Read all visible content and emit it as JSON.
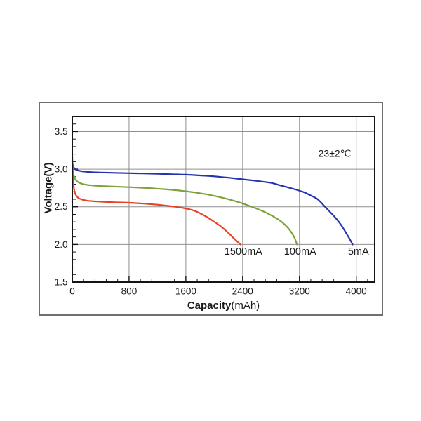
{
  "page": {
    "background": "#ffffff"
  },
  "figure": {
    "border_color": "#6f6f6f"
  },
  "chart_data": {
    "type": "line",
    "title": "",
    "xlabel": "Capacity",
    "xlabel_unit": "(mAh)",
    "ylabel": "Voltage(V)",
    "annotation": "23±2℃",
    "x_ticks": [
      0,
      800,
      1600,
      2400,
      3200,
      4000
    ],
    "y_ticks": [
      1.5,
      2.0,
      2.5,
      3.0,
      3.5
    ],
    "xlim": [
      0,
      4260
    ],
    "ylim": [
      1.5,
      3.7
    ],
    "x_minor_step": 160,
    "y_minor_step": 0.1,
    "grid": true,
    "legend_position": "labels-at-curve-ends",
    "colors": {
      "grid": "#8f8f8f",
      "axis": "#141414",
      "text": "#1a1a1a"
    },
    "series": [
      {
        "name": "5mA",
        "color": "#2433ad",
        "label_x": 4030,
        "label_y": 1.9,
        "points": [
          [
            0,
            3.1
          ],
          [
            10,
            3.05
          ],
          [
            30,
            3.01
          ],
          [
            60,
            2.99
          ],
          [
            120,
            2.975
          ],
          [
            250,
            2.962
          ],
          [
            400,
            2.956
          ],
          [
            600,
            2.951
          ],
          [
            800,
            2.947
          ],
          [
            1000,
            2.943
          ],
          [
            1200,
            2.939
          ],
          [
            1400,
            2.933
          ],
          [
            1600,
            2.927
          ],
          [
            1800,
            2.917
          ],
          [
            2000,
            2.905
          ],
          [
            2200,
            2.887
          ],
          [
            2400,
            2.866
          ],
          [
            2600,
            2.844
          ],
          [
            2800,
            2.818
          ],
          [
            2930,
            2.785
          ],
          [
            3060,
            2.752
          ],
          [
            3160,
            2.726
          ],
          [
            3260,
            2.695
          ],
          [
            3360,
            2.65
          ],
          [
            3460,
            2.597
          ],
          [
            3560,
            2.5
          ],
          [
            3650,
            2.413
          ],
          [
            3740,
            2.318
          ],
          [
            3820,
            2.21
          ],
          [
            3890,
            2.1
          ],
          [
            3950,
            2.0
          ]
        ]
      },
      {
        "name": "100mA",
        "color": "#7da23b",
        "label_x": 3210,
        "label_y": 1.9,
        "points": [
          [
            0,
            3.06
          ],
          [
            8,
            2.97
          ],
          [
            20,
            2.92
          ],
          [
            40,
            2.87
          ],
          [
            80,
            2.83
          ],
          [
            140,
            2.805
          ],
          [
            220,
            2.79
          ],
          [
            350,
            2.779
          ],
          [
            500,
            2.772
          ],
          [
            700,
            2.765
          ],
          [
            900,
            2.757
          ],
          [
            1100,
            2.747
          ],
          [
            1300,
            2.734
          ],
          [
            1500,
            2.717
          ],
          [
            1700,
            2.694
          ],
          [
            1900,
            2.664
          ],
          [
            2100,
            2.624
          ],
          [
            2300,
            2.574
          ],
          [
            2450,
            2.527
          ],
          [
            2600,
            2.474
          ],
          [
            2750,
            2.413
          ],
          [
            2900,
            2.333
          ],
          [
            3000,
            2.258
          ],
          [
            3080,
            2.17
          ],
          [
            3130,
            2.09
          ],
          [
            3165,
            2.0
          ]
        ]
      },
      {
        "name": "1500mA",
        "color": "#ea4125",
        "label_x": 2410,
        "label_y": 1.9,
        "points": [
          [
            0,
            3.17
          ],
          [
            5,
            3.02
          ],
          [
            12,
            2.87
          ],
          [
            25,
            2.74
          ],
          [
            45,
            2.665
          ],
          [
            80,
            2.622
          ],
          [
            130,
            2.598
          ],
          [
            200,
            2.583
          ],
          [
            300,
            2.573
          ],
          [
            450,
            2.566
          ],
          [
            600,
            2.56
          ],
          [
            800,
            2.553
          ],
          [
            1000,
            2.543
          ],
          [
            1200,
            2.528
          ],
          [
            1400,
            2.506
          ],
          [
            1550,
            2.486
          ],
          [
            1700,
            2.454
          ],
          [
            1800,
            2.414
          ],
          [
            1900,
            2.362
          ],
          [
            2000,
            2.302
          ],
          [
            2100,
            2.235
          ],
          [
            2200,
            2.152
          ],
          [
            2290,
            2.068
          ],
          [
            2370,
            2.0
          ]
        ]
      }
    ]
  }
}
